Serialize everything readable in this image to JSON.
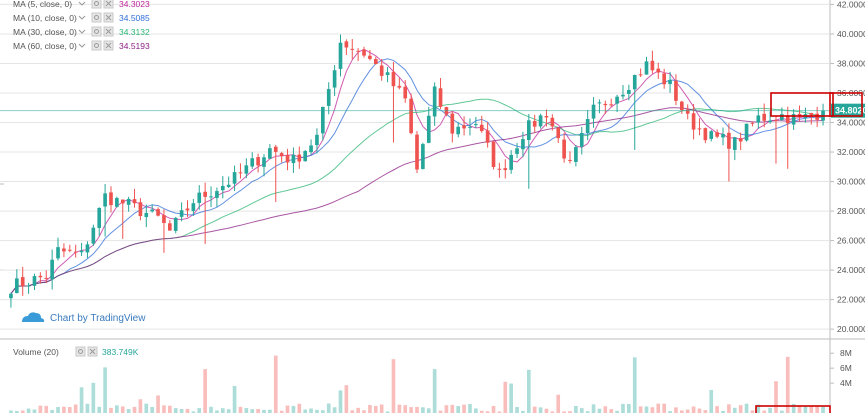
{
  "legend": {
    "items": [
      {
        "label": "MA (5, close, 0)",
        "value": "34.3023",
        "color": "#c1269b"
      },
      {
        "label": "MA (10, close, 0)",
        "value": "34.5085",
        "color": "#2f6ed8"
      },
      {
        "label": "MA (30, close, 0)",
        "value": "34.3132",
        "color": "#2bb673"
      },
      {
        "label": "MA (60, close, 0)",
        "value": "34.5193",
        "color": "#8d1f86"
      }
    ]
  },
  "watermark": {
    "text": "Chart by TradingView"
  },
  "volume_legend": {
    "label": "Volume (20)",
    "value": "383.749K"
  },
  "price_tag": {
    "text": "34.8020",
    "color": "#26a69a"
  },
  "colors": {
    "up": "#26a69a",
    "down": "#ef5350",
    "highlight": "#cc0000",
    "grid": "#e5e5e5"
  },
  "chart_data": [
    {
      "type": "candlestick",
      "title": "",
      "y_ticks": [
        "42.0000",
        "40.0000",
        "38.0000",
        "36.0000",
        "34.0000",
        "32.0000",
        "30.0000",
        "28.0000",
        "26.0000",
        "24.0000",
        "22.0000",
        "20.0000"
      ],
      "ylim": [
        19.4,
        42.3
      ],
      "current_price": 34.802,
      "x_bars": 139,
      "series": [
        {
          "name": "MA (5, close, 0)",
          "last": 34.3023,
          "kind": "ma",
          "period": 5
        },
        {
          "name": "MA (10, close, 0)",
          "last": 34.5085,
          "kind": "ma",
          "period": 10
        },
        {
          "name": "MA (30, close, 0)",
          "last": 34.3132,
          "kind": "ma",
          "period": 30
        },
        {
          "name": "MA (60, close, 0)",
          "last": 34.5193,
          "kind": "ma",
          "period": 60
        }
      ],
      "anchors": [
        [
          0,
          22.9
        ],
        [
          6,
          23.6
        ],
        [
          8,
          25.3
        ],
        [
          12,
          25.0
        ],
        [
          16,
          29.0
        ],
        [
          20,
          28.4
        ],
        [
          25,
          27.5
        ],
        [
          27,
          26.6
        ],
        [
          31,
          28.7
        ],
        [
          38,
          30.2
        ],
        [
          44,
          32.2
        ],
        [
          48,
          31.4
        ],
        [
          52,
          33.0
        ],
        [
          56,
          39.5
        ],
        [
          60,
          38.7
        ],
        [
          64,
          37.0
        ],
        [
          67,
          35.5
        ],
        [
          69,
          30.8
        ],
        [
          72,
          36.0
        ],
        [
          75,
          33.5
        ],
        [
          79,
          34.0
        ],
        [
          83,
          30.5
        ],
        [
          87,
          33.3
        ],
        [
          91,
          34.7
        ],
        [
          95,
          31.0
        ],
        [
          99,
          34.8
        ],
        [
          104,
          36.3
        ],
        [
          108,
          37.9
        ],
        [
          112,
          36.5
        ],
        [
          115,
          34.2
        ],
        [
          119,
          33.0
        ],
        [
          123,
          32.6
        ],
        [
          127,
          34.3
        ],
        [
          131,
          34.5
        ],
        [
          134,
          34.2
        ],
        [
          138,
          34.8
        ]
      ]
    },
    {
      "type": "bar",
      "title": "Volume (20)",
      "y_ticks": [
        "8M",
        "6M",
        "4M"
      ],
      "ylim": [
        0,
        9.5
      ]
    }
  ]
}
